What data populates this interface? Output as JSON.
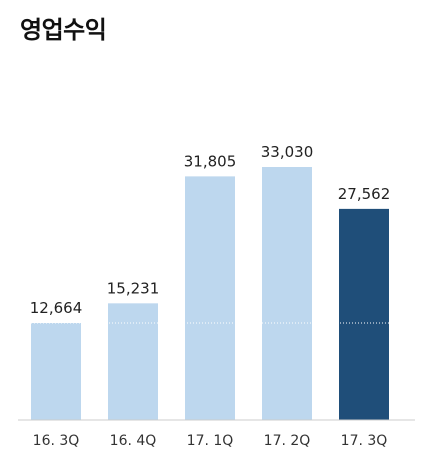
{
  "chart_data": {
    "type": "bar",
    "title": "영업수익",
    "categories": [
      "16. 3Q",
      "16. 4Q",
      "17. 1Q",
      "17. 2Q",
      "17. 3Q"
    ],
    "values": [
      12664,
      15231,
      31805,
      33030,
      27562
    ],
    "value_labels": [
      "12,664",
      "15,231",
      "31,805",
      "33,030",
      "27,562"
    ],
    "colors": {
      "default_bar": "#bdd7ee",
      "highlight_bar": "#1f4e79",
      "baseline": "#cccccc",
      "reference_line": "#dddddd"
    },
    "highlight_index": 4,
    "reference_value": 12664,
    "ylim": [
      0,
      40000
    ],
    "grid": false,
    "legend": "none"
  }
}
